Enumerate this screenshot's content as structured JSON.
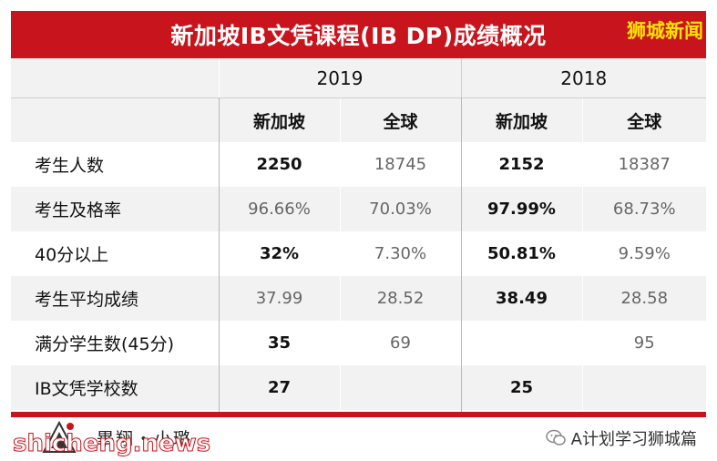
{
  "title": "新加坡IB文凭课程(IB DP)成绩概况",
  "brand_badge": "狮城新闻",
  "years": [
    "2019",
    "2018"
  ],
  "regions": [
    "新加坡",
    "全球",
    "新加坡",
    "全球"
  ],
  "rows": [
    {
      "label": "考生人数",
      "v2019_sg": "2250",
      "v2019_gl": "18745",
      "v2018_sg": "2152",
      "v2018_gl": "18387"
    },
    {
      "label": "考生及格率",
      "v2019_sg": "96.66%",
      "v2019_gl": "70.03%",
      "v2018_sg": "97.99%",
      "v2018_gl": "68.73%"
    },
    {
      "label": "40分以上",
      "v2019_sg": "32%",
      "v2019_gl": "7.30%",
      "v2018_sg": "50.81%",
      "v2018_gl": "9.59%"
    },
    {
      "label": "考生平均成绩",
      "v2019_sg": "37.99",
      "v2019_gl": "28.52",
      "v2018_sg": "38.49",
      "v2018_gl": "28.58"
    },
    {
      "label": "满分学生数(45分)",
      "v2019_sg": "35",
      "v2019_gl": "69",
      "v2018_sg": "",
      "v2018_gl": "95"
    },
    {
      "label": "IB文凭学校数",
      "v2019_sg": "27",
      "v2019_gl": "",
      "v2018_sg": "25",
      "v2018_gl": ""
    }
  ],
  "footer": {
    "logo_text": "畢翔・小璐",
    "watermark": "shicheng.news",
    "account": "A计划学习狮城篇"
  },
  "colors": {
    "accent": "#c8141c",
    "badge": "#ffe400",
    "row_shade": "#f2f2f2"
  }
}
